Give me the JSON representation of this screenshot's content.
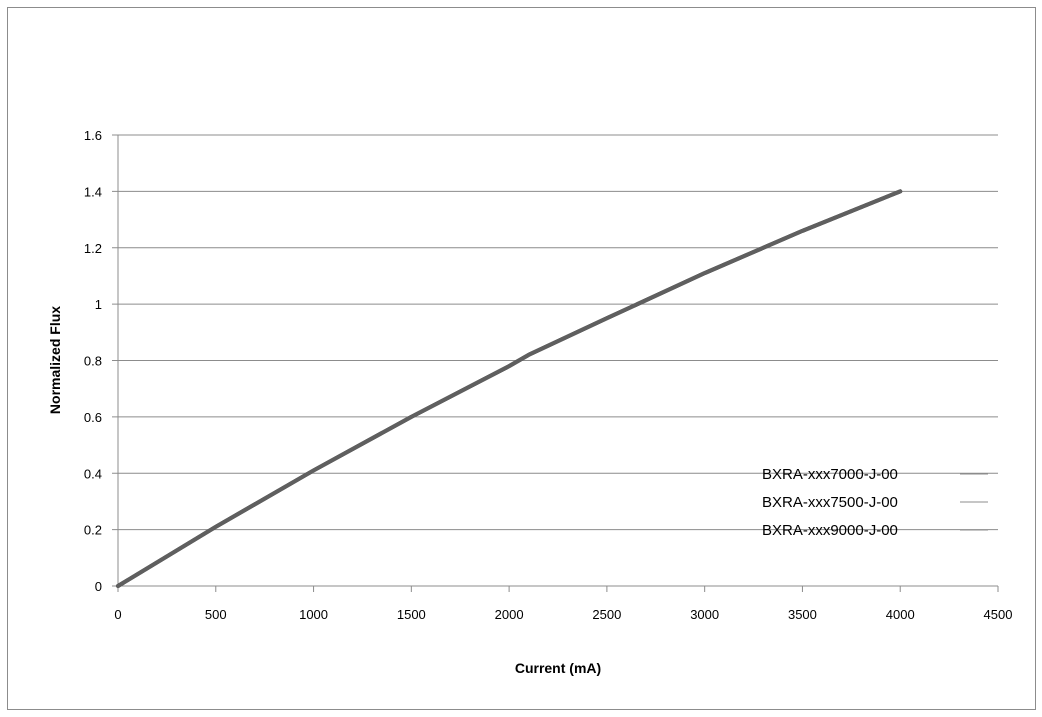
{
  "chart_data": {
    "type": "line",
    "title": "",
    "xlabel": "Current (mA)",
    "ylabel": "Normalized Flux",
    "xlim": [
      0,
      4500
    ],
    "ylim": [
      0,
      1.6
    ],
    "xticks": [
      "0",
      "500",
      "1000",
      "1500",
      "2000",
      "2500",
      "3000",
      "3500",
      "4000",
      "4500"
    ],
    "yticks": [
      "0",
      "0.2",
      "0.4",
      "0.6",
      "0.8",
      "1",
      "1.2",
      "1.4",
      "1.6"
    ],
    "grid": "horizontal",
    "legend_position": "bottom-right",
    "line_color": "#5f5f5f",
    "grid_color": "#8c8c8c",
    "series": [
      {
        "name": "BXRA-xxx7000-J-00",
        "x": [
          0,
          500,
          1000,
          1500,
          2000,
          2100,
          2500,
          3000,
          3500,
          4000
        ],
        "y": [
          0,
          0.21,
          0.41,
          0.6,
          0.78,
          0.82,
          0.95,
          1.11,
          1.26,
          1.4
        ]
      },
      {
        "name": "BXRA-xxx7500-J-00",
        "x": [
          0,
          500,
          1000,
          1500,
          2000,
          2100,
          2500,
          3000,
          3500,
          4000
        ],
        "y": [
          0,
          0.21,
          0.41,
          0.6,
          0.78,
          0.82,
          0.95,
          1.11,
          1.26,
          1.4
        ]
      },
      {
        "name": "BXRA-xxx9000-J-00",
        "x": [
          0,
          500,
          1000,
          1500,
          2000,
          2100,
          2500,
          3000,
          3500,
          4000
        ],
        "y": [
          0,
          0.21,
          0.41,
          0.6,
          0.78,
          0.82,
          0.95,
          1.11,
          1.26,
          1.4
        ]
      }
    ]
  }
}
